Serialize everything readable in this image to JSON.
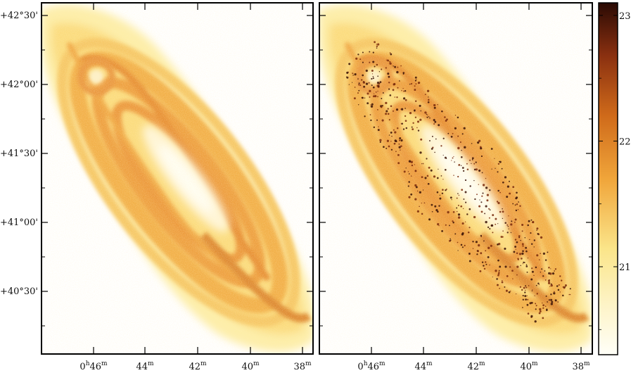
{
  "figure": {
    "y_tick_labels": [
      "+42°30'",
      "+42°00'",
      "+41°30'",
      "+41°00'",
      "+40°30'"
    ],
    "x_ticks": [
      {
        "main": "0",
        "sup_h": "h",
        "minutes": "46",
        "sup_m": "m"
      },
      {
        "main": "",
        "sup_h": "",
        "minutes": "44",
        "sup_m": "m"
      },
      {
        "main": "",
        "sup_h": "",
        "minutes": "42",
        "sup_m": "m"
      },
      {
        "main": "",
        "sup_h": "",
        "minutes": "40",
        "sup_m": "m"
      },
      {
        "main": "",
        "sup_h": "",
        "minutes": "38",
        "sup_m": "m"
      }
    ],
    "colorbar": {
      "tick_labels": [
        "23",
        "22",
        "21"
      ],
      "range": [
        20.3,
        23.1
      ],
      "colors": [
        "#fffff8",
        "#fbe58a",
        "#f0a53a",
        "#cf6a1a",
        "#8a3010",
        "#2a0a04"
      ]
    },
    "panels": [
      {
        "name": "left",
        "speckled": false
      },
      {
        "name": "right",
        "speckled": true
      }
    ]
  }
}
